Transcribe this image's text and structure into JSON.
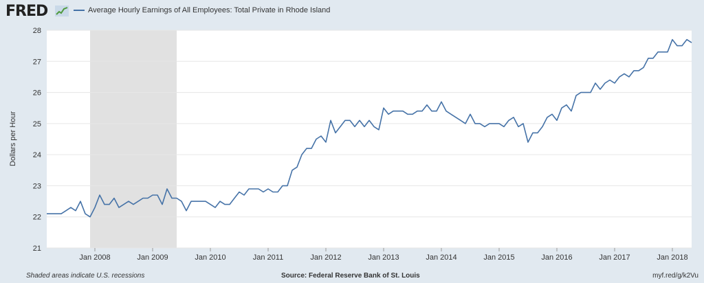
{
  "header": {
    "logo_text": "FRED",
    "logo_icon": "fred-chart-icon"
  },
  "chart_data": {
    "type": "line",
    "title": "Average Hourly Earnings of All Employees: Total Private in Rhode Island",
    "xlabel": "",
    "ylabel": "Dollars per Hour",
    "ylim": [
      21,
      28
    ],
    "yticks": [
      "21",
      "22",
      "23",
      "24",
      "25",
      "26",
      "27",
      "28"
    ],
    "xticks": [
      "Jan 2008",
      "Jan 2009",
      "Jan 2010",
      "Jan 2011",
      "Jan 2012",
      "Jan 2013",
      "Jan 2014",
      "Jan 2015",
      "Jan 2016",
      "Jan 2017",
      "Jan 2018"
    ],
    "grid": true,
    "legend": "top-left",
    "recessions": [
      {
        "start": "2007-12",
        "end": "2009-06"
      }
    ],
    "colors": {
      "line": "#4572a7",
      "recession": "#e1e1e1",
      "grid": "#e6e6e6"
    },
    "series": [
      {
        "name": "Average Hourly Earnings of All Employees: Total Private in Rhode Island",
        "start": "2007-03",
        "frequency": "monthly",
        "values": [
          22.1,
          22.1,
          22.1,
          22.1,
          22.2,
          22.3,
          22.2,
          22.5,
          22.1,
          22.0,
          22.3,
          22.7,
          22.4,
          22.4,
          22.6,
          22.3,
          22.4,
          22.5,
          22.4,
          22.5,
          22.6,
          22.6,
          22.7,
          22.7,
          22.4,
          22.9,
          22.6,
          22.6,
          22.5,
          22.2,
          22.5,
          22.5,
          22.5,
          22.5,
          22.4,
          22.3,
          22.5,
          22.4,
          22.4,
          22.6,
          22.8,
          22.7,
          22.9,
          22.9,
          22.9,
          22.8,
          22.9,
          22.8,
          22.8,
          23.0,
          23.0,
          23.5,
          23.6,
          24.0,
          24.2,
          24.2,
          24.5,
          24.6,
          24.4,
          25.1,
          24.7,
          24.9,
          25.1,
          25.1,
          24.9,
          25.1,
          24.9,
          25.1,
          24.9,
          24.8,
          25.5,
          25.3,
          25.4,
          25.4,
          25.4,
          25.3,
          25.3,
          25.4,
          25.4,
          25.6,
          25.4,
          25.4,
          25.7,
          25.4,
          25.3,
          25.2,
          25.1,
          25.0,
          25.3,
          25.0,
          25.0,
          24.9,
          25.0,
          25.0,
          25.0,
          24.9,
          25.1,
          25.2,
          24.9,
          25.0,
          24.4,
          24.7,
          24.7,
          24.9,
          25.2,
          25.3,
          25.1,
          25.5,
          25.6,
          25.4,
          25.9,
          26.0,
          26.0,
          26.0,
          26.3,
          26.1,
          26.3,
          26.4,
          26.3,
          26.5,
          26.6,
          26.5,
          26.7,
          26.7,
          26.8,
          27.1,
          27.1,
          27.3,
          27.3,
          27.3,
          27.7,
          27.5,
          27.5,
          27.7,
          27.6
        ]
      }
    ]
  },
  "footer": {
    "note": "Shaded areas indicate U.S. recessions",
    "source": "Source: Federal Reserve Bank of St. Louis",
    "url": "myf.red/g/k2Vu"
  }
}
